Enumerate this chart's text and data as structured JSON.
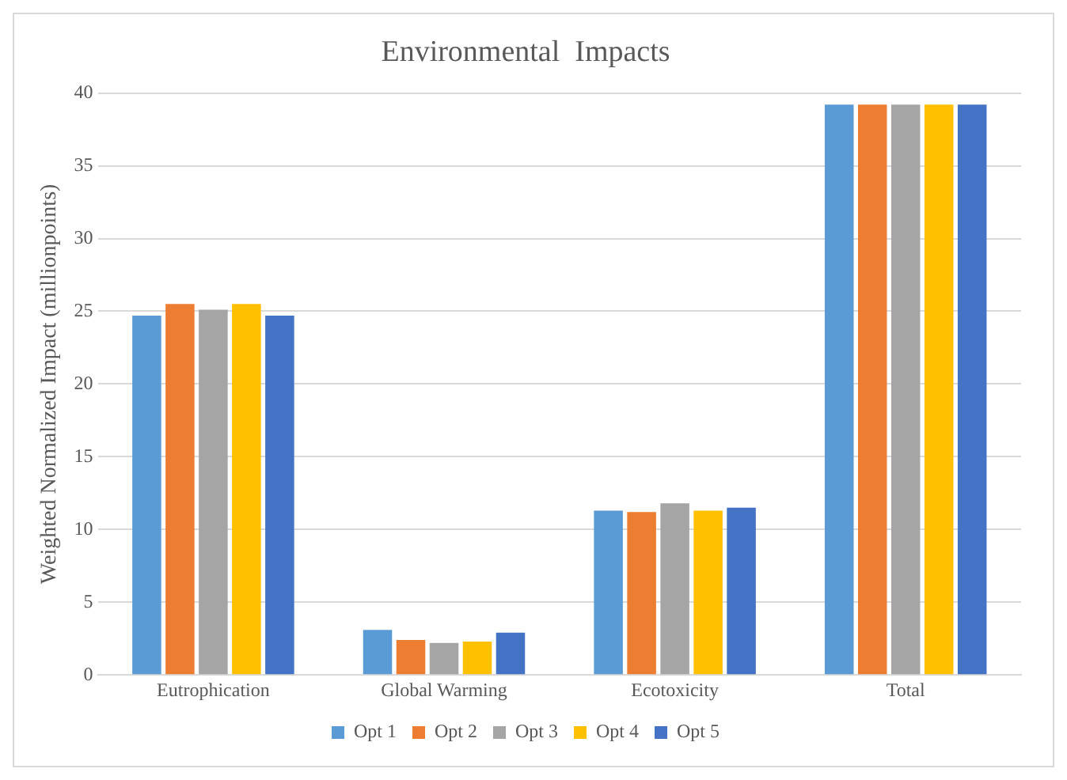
{
  "chart_data": {
    "type": "bar",
    "title": "Environmental  Impacts",
    "ylabel": "Weighted Normalized Impact (millionpoints)",
    "categories": [
      "Eutrophication",
      "Global Warming",
      "Ecotoxicity",
      "Total"
    ],
    "series": [
      {
        "name": "Opt 1",
        "color": "#5b9bd5",
        "values": [
          24.7,
          3.1,
          11.3,
          39.2
        ]
      },
      {
        "name": "Opt 2",
        "color": "#ed7d31",
        "values": [
          25.5,
          2.4,
          11.2,
          39.2
        ]
      },
      {
        "name": "Opt 3",
        "color": "#a5a5a5",
        "values": [
          25.1,
          2.2,
          11.8,
          39.2
        ]
      },
      {
        "name": "Opt 4",
        "color": "#ffc000",
        "values": [
          25.5,
          2.3,
          11.3,
          39.2
        ]
      },
      {
        "name": "Opt 5",
        "color": "#4472c4",
        "values": [
          24.7,
          2.9,
          11.5,
          39.2
        ]
      }
    ],
    "ylim": [
      0,
      40
    ],
    "yticks": [
      0,
      5,
      10,
      15,
      20,
      25,
      30,
      35,
      40
    ],
    "grid": "y",
    "legend": "bottom"
  }
}
